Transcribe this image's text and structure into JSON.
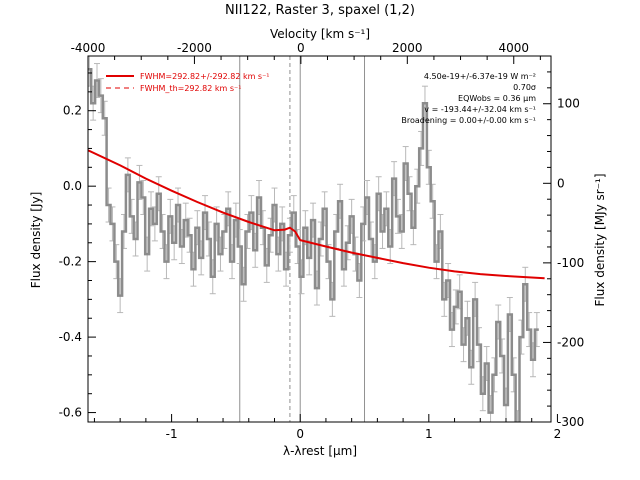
{
  "chart_data": {
    "type": "line",
    "title": "NII122, Raster 3, spaxel (1,2)",
    "xlabel": "λ-λrest [μm]",
    "ylabel": "Flux density [Jy]",
    "top_xlabel": "Velocity [km s⁻¹]",
    "right_ylabel": "Flux density [MJy sr⁻¹]",
    "xlim": [
      -1.65,
      1.95
    ],
    "ylim": [
      -0.625,
      0.345
    ],
    "top_xlim": [
      -4000,
      4700
    ],
    "right_ylim": [
      -300,
      160
    ],
    "x_ticks": [
      -1,
      0,
      1,
      2
    ],
    "y_ticks": [
      0.2,
      0.0,
      -0.2,
      -0.4,
      -0.6
    ],
    "y_tick_labels": [
      "0.2",
      "0.0",
      "-0.2",
      "-0.4",
      "-0.6"
    ],
    "top_ticks": [
      -4000,
      -2000,
      0,
      2000,
      4000
    ],
    "right_ticks": [
      100,
      0,
      -100,
      -200,
      -300
    ],
    "vertical_lines": [
      -0.47,
      0.0,
      0.5
    ],
    "dashed_vertical_line": -0.08,
    "legend": [
      {
        "label": "FWHM=292.82+/-292.82 km s⁻¹",
        "style": "solid",
        "color": "#e00000"
      },
      {
        "label": "FWHM_th=292.82 km s⁻¹",
        "style": "dashed",
        "color": "#e00000"
      }
    ],
    "annotations": [
      "4.50e-19+/-6.37e-19 W m⁻²",
      "0.70σ",
      "EQWobs = 0.36 μm",
      "v = -193.44+/-32.04 km s⁻¹",
      "Broadening = 0.00+/-0.00 km s⁻¹"
    ],
    "series": [
      {
        "name": "spectrum",
        "style": "step",
        "color": "#8c8c8c",
        "error": 0.045,
        "x": [
          -1.64,
          -1.61,
          -1.58,
          -1.55,
          -1.52,
          -1.49,
          -1.46,
          -1.43,
          -1.4,
          -1.37,
          -1.34,
          -1.31,
          -1.28,
          -1.25,
          -1.22,
          -1.19,
          -1.16,
          -1.13,
          -1.1,
          -1.07,
          -1.04,
          -1.01,
          -0.98,
          -0.95,
          -0.92,
          -0.89,
          -0.86,
          -0.83,
          -0.8,
          -0.77,
          -0.74,
          -0.71,
          -0.68,
          -0.65,
          -0.62,
          -0.59,
          -0.56,
          -0.53,
          -0.5,
          -0.47,
          -0.44,
          -0.41,
          -0.38,
          -0.35,
          -0.32,
          -0.29,
          -0.26,
          -0.23,
          -0.2,
          -0.17,
          -0.14,
          -0.11,
          -0.08,
          -0.05,
          -0.02,
          0.01,
          0.04,
          0.07,
          0.1,
          0.13,
          0.16,
          0.19,
          0.22,
          0.25,
          0.28,
          0.31,
          0.34,
          0.37,
          0.4,
          0.43,
          0.46,
          0.49,
          0.52,
          0.55,
          0.58,
          0.61,
          0.64,
          0.67,
          0.7,
          0.73,
          0.76,
          0.79,
          0.82,
          0.85,
          0.88,
          0.91,
          0.94,
          0.97,
          1.0,
          1.03,
          1.06,
          1.09,
          1.12,
          1.15,
          1.18,
          1.21,
          1.24,
          1.27,
          1.3,
          1.33,
          1.36,
          1.39,
          1.42,
          1.45,
          1.48,
          1.51,
          1.54,
          1.57,
          1.6,
          1.63,
          1.66,
          1.69,
          1.72,
          1.75,
          1.78,
          1.81,
          1.84
        ],
        "y": [
          0.31,
          0.22,
          0.28,
          0.24,
          0.18,
          -0.05,
          -0.1,
          -0.2,
          -0.29,
          -0.12,
          0.03,
          -0.08,
          -0.14,
          0.01,
          -0.03,
          -0.18,
          -0.06,
          -0.1,
          -0.02,
          -0.12,
          -0.2,
          -0.08,
          -0.15,
          -0.05,
          -0.16,
          -0.09,
          -0.13,
          -0.22,
          -0.11,
          -0.19,
          -0.07,
          -0.14,
          -0.24,
          -0.1,
          -0.18,
          -0.12,
          -0.06,
          -0.2,
          -0.09,
          -0.16,
          -0.26,
          -0.12,
          -0.07,
          -0.17,
          -0.03,
          -0.11,
          -0.21,
          -0.13,
          -0.05,
          -0.18,
          -0.1,
          -0.22,
          -0.13,
          -0.07,
          -0.16,
          -0.24,
          -0.11,
          -0.19,
          -0.09,
          -0.27,
          -0.14,
          -0.06,
          -0.2,
          -0.3,
          -0.12,
          -0.04,
          -0.22,
          -0.15,
          -0.08,
          -0.18,
          -0.25,
          -0.1,
          -0.03,
          -0.14,
          -0.2,
          -0.02,
          -0.12,
          -0.06,
          -0.16,
          0.02,
          -0.08,
          -0.12,
          0.06,
          -0.02,
          -0.11,
          0.0,
          0.1,
          0.22,
          0.05,
          -0.04,
          -0.2,
          -0.12,
          -0.3,
          -0.25,
          -0.38,
          -0.32,
          -0.28,
          -0.42,
          -0.35,
          -0.48,
          -0.3,
          -0.42,
          -0.55,
          -0.47,
          -0.6,
          -0.5,
          -0.36,
          -0.45,
          -0.58,
          -0.34,
          -0.5,
          -0.64,
          -0.4,
          -0.26,
          -0.38,
          -0.46,
          -0.38
        ]
      },
      {
        "name": "fit",
        "style": "line",
        "color": "#e00000",
        "x": [
          -1.65,
          -1.4,
          -1.2,
          -1.0,
          -0.8,
          -0.6,
          -0.4,
          -0.2,
          -0.12,
          -0.08,
          -0.04,
          0.0,
          0.2,
          0.4,
          0.6,
          0.8,
          1.0,
          1.2,
          1.4,
          1.6,
          1.8,
          1.9
        ],
        "y": [
          0.095,
          0.055,
          0.02,
          -0.012,
          -0.042,
          -0.07,
          -0.095,
          -0.117,
          -0.115,
          -0.11,
          -0.12,
          -0.143,
          -0.16,
          -0.176,
          -0.19,
          -0.204,
          -0.216,
          -0.226,
          -0.233,
          -0.238,
          -0.242,
          -0.244
        ]
      }
    ]
  }
}
